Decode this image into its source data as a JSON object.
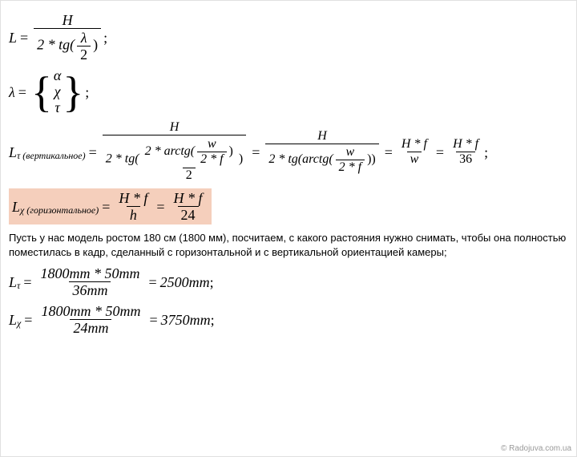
{
  "colors": {
    "text": "#000000",
    "background": "#ffffff",
    "highlight": "#f5cfbc",
    "border": "#e0e0e0",
    "watermark": "#999999"
  },
  "fonts": {
    "math_family": "Times New Roman",
    "math_size_pt": 14,
    "body_family": "Verdana",
    "body_size_pt": 10
  },
  "eq1": {
    "lhs": "L",
    "num": "H",
    "den_pre": "2 * tg(",
    "den_frac_num": "λ",
    "den_frac_den": "2",
    "den_post": ")",
    "tail": ";"
  },
  "eq2": {
    "lhs": "λ",
    "opt1": "α",
    "opt2": "χ",
    "opt3": "τ",
    "tail": ";"
  },
  "eq3": {
    "lhs_var": "L",
    "lhs_sub": "τ (вертикальное)",
    "p1_num": "H",
    "p1_den_pre": "2 * tg(",
    "p1_inner_num_pre": "2 * arctg(",
    "p1_inner_frac_num": "w",
    "p1_inner_frac_den": "2 * f",
    "p1_inner_post": ")",
    "p1_inner_den": "2",
    "p1_den_post": ")",
    "p2_num": "H",
    "p2_den_pre": "2 * tg(arctg(",
    "p2_frac_num": "w",
    "p2_frac_den": "2 * f",
    "p2_den_post": "))",
    "p3_num": "H * f",
    "p3_den": "w",
    "p4_num": "H * f",
    "p4_den": "36",
    "tail": ";"
  },
  "eq4": {
    "lhs_var": "L",
    "lhs_sub": "χ (горизонтальное)",
    "p1_num": "H * f",
    "p1_den": "h",
    "p2_num": "H * f",
    "p2_den": "24"
  },
  "paragraph": "Пусть у нас модель ростом 180 см (1800 мм), посчитаем, с какого растояния нужно снимать, чтобы она полностью поместилась в кадр, сделанный с горизон­тальной и с вертикальной ориентацией камеры;",
  "eq5": {
    "lhs_var": "L",
    "lhs_sub": "τ",
    "num": "1800mm * 50mm",
    "den": "36mm",
    "rhs": "2500mm",
    "tail": ";"
  },
  "eq6": {
    "lhs_var": "L",
    "lhs_sub": "χ",
    "num": "1800mm * 50mm",
    "den": "24mm",
    "rhs": "3750mm",
    "tail": ";"
  },
  "watermark": "© Radojuva.com.ua"
}
